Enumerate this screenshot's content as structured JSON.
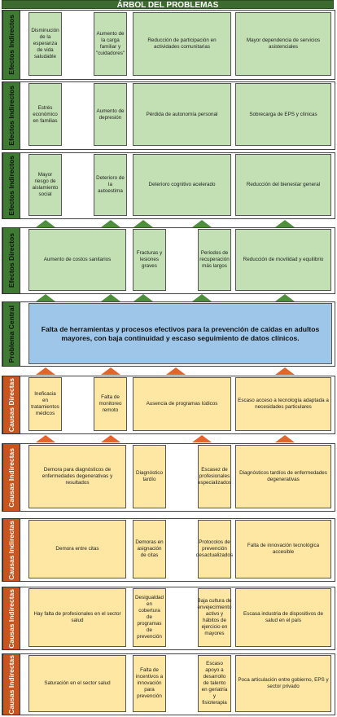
{
  "title": "ÁRBOL DEL PROBLEMAS",
  "labels": {
    "efectos_indirectos": "Efectos Indirectos",
    "efectos_directos": "Efectos Directos",
    "problema_central": "Problema Central",
    "causas_directas": "Causas Directas",
    "causas_indirectas": "Causas Indirectas"
  },
  "ei1": [
    "Disminución de la esperanza de vida saludable",
    "Aumento de la carga familiar y \"cuidadores\"",
    "Reducción de participación en actividades comunitarias",
    "Mayor dependencia de servicios asistenciales"
  ],
  "ei2": [
    "Estrés económico en familias",
    "Aumento de depresión",
    "Pérdida de autonomía personal",
    "Sobrecarga de EPS y clínicas"
  ],
  "ei3": [
    "Mayor riesgo de aislamiento social",
    "Deterioro de la autoestima",
    "Deterioro cognitivo acelerado",
    "Reducción del bienestar general"
  ],
  "ed": [
    "Aumento de costos sanitarios",
    "Fracturas y lesiones graves",
    "Periodos de recuperación más largos",
    "Reducción de movilidad y equilibrio"
  ],
  "central": "Falta de herramientas y procesos efectivos para la prevención de caídas en adultos mayores, con baja continuidad y escaso seguimiento de datos clínicos.",
  "cd": [
    "Ineficacia en tratamientos médicos",
    "Falta de monitoreo remoto",
    "Ausencia de programas lúdicos",
    "Escaso acceso a tecnología adaptada a necesidades particulares"
  ],
  "ci1": [
    "Demora para diagnósticos de enfermedades degenerativas y resultados",
    "Diagnóstico tardío",
    "Escasez de profesionales especializados",
    "Diagnósticos tardíos de enfermedades degenerativas"
  ],
  "ci2": [
    "Demora entre citas",
    "Demoras en asignación de citas",
    "Protocolos de prevención desactualizados",
    "Falta de innovación tecnológica accesible"
  ],
  "ci3": [
    "Hay falta de profesionales en el sector salud",
    "Desigualdad en cobertura de programas de prevención",
    "Baja cultura de envejecimiento activo y hábitos de ejercicio en mayores",
    "Escasa industria de dispositivos de salud en el país"
  ],
  "ci4": [
    "Saturación en el sector salud",
    "Falta de incentivos a innovación para prevención",
    "Escaso apoyo a desarrollo de talento en geriatría y fisioterapia",
    "Poca articulación entre gobierno, EPS y sector privado"
  ],
  "colors": {
    "green": "#c3e0b4",
    "yellow": "#fde7a3",
    "blue": "#9ec6e8",
    "orange": "#c8541f",
    "dark_green": "#3f7a32"
  }
}
